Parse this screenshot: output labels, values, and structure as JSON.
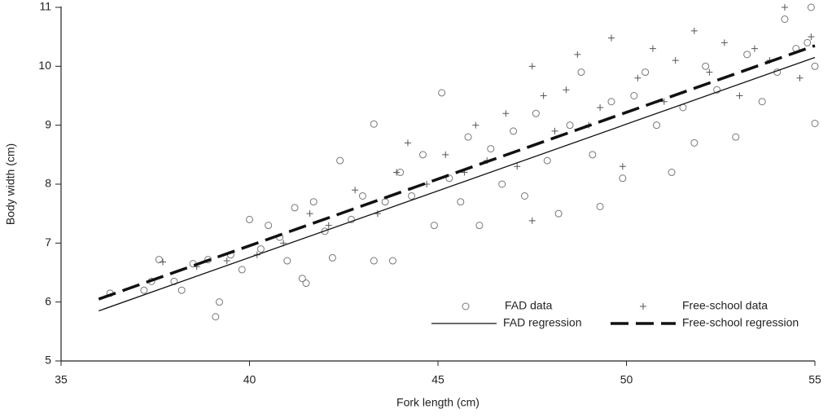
{
  "chart_data": {
    "type": "scatter",
    "x_label": "Fork length (cm)",
    "y_label": "Body width (cm)",
    "xlim": [
      35,
      55
    ],
    "xticks": [
      35,
      40,
      45,
      50,
      55
    ],
    "ylim": [
      5,
      11
    ],
    "yticks": [
      5,
      6,
      7,
      8,
      9,
      10,
      11
    ],
    "legend": "lower right",
    "series": [
      {
        "name": "FAD data",
        "marker": "circle",
        "color": "#777777",
        "x": [
          36.3,
          37.2,
          37.4,
          37.6,
          38.0,
          38.2,
          38.5,
          38.9,
          39.1,
          39.2,
          39.5,
          39.8,
          40.0,
          40.3,
          40.5,
          40.8,
          41.0,
          41.2,
          41.4,
          41.5,
          41.7,
          42.0,
          42.2,
          42.4,
          42.7,
          43.0,
          43.3,
          43.3,
          43.6,
          43.8,
          44.0,
          44.3,
          44.6,
          44.9,
          45.1,
          45.3,
          45.6,
          45.8,
          46.1,
          46.4,
          46.7,
          47.0,
          47.3,
          47.6,
          47.9,
          48.2,
          48.5,
          48.8,
          49.1,
          49.3,
          49.6,
          49.9,
          50.2,
          50.5,
          50.8,
          51.2,
          51.5,
          51.8,
          52.1,
          52.4,
          52.9,
          53.2,
          53.6,
          54.0,
          54.2,
          54.5,
          54.8,
          54.9,
          55.0,
          55.0
        ],
        "values": [
          6.15,
          6.2,
          6.35,
          6.72,
          6.35,
          6.2,
          6.65,
          6.72,
          5.75,
          6.0,
          6.8,
          6.55,
          7.4,
          6.9,
          7.3,
          7.1,
          6.7,
          7.6,
          6.4,
          6.32,
          7.7,
          7.2,
          6.75,
          8.4,
          7.4,
          7.8,
          9.02,
          6.7,
          7.7,
          6.7,
          8.2,
          7.8,
          8.5,
          7.3,
          9.55,
          8.1,
          7.7,
          8.8,
          7.3,
          8.6,
          8.0,
          8.9,
          7.8,
          9.2,
          8.4,
          7.5,
          9.0,
          9.9,
          8.5,
          7.62,
          9.4,
          8.1,
          9.5,
          9.9,
          9.0,
          8.2,
          9.3,
          8.7,
          10.0,
          9.6,
          8.8,
          10.2,
          9.4,
          9.9,
          10.8,
          10.3,
          10.4,
          11.0,
          9.03,
          10.0
        ]
      },
      {
        "name": "Free-school data",
        "marker": "plus",
        "color": "#555555",
        "x": [
          37.7,
          38.6,
          39.4,
          40.2,
          40.9,
          41.6,
          42.1,
          42.8,
          43.4,
          43.9,
          44.2,
          44.7,
          45.2,
          45.7,
          46.0,
          46.3,
          46.8,
          47.1,
          47.5,
          47.5,
          47.8,
          48.1,
          48.4,
          48.7,
          49.0,
          49.3,
          49.6,
          49.9,
          50.3,
          50.7,
          51.0,
          51.3,
          51.8,
          52.2,
          52.6,
          53.0,
          53.4,
          53.8,
          54.2,
          54.6,
          54.9
        ],
        "values": [
          6.68,
          6.6,
          6.7,
          6.8,
          7.0,
          7.5,
          7.3,
          7.9,
          7.5,
          8.2,
          8.7,
          8.0,
          8.5,
          8.2,
          9.0,
          8.4,
          9.2,
          8.3,
          10.0,
          7.38,
          9.5,
          8.9,
          9.6,
          10.2,
          9.0,
          9.3,
          10.48,
          8.3,
          9.8,
          10.3,
          9.4,
          10.1,
          10.6,
          9.9,
          10.4,
          9.5,
          10.3,
          10.1,
          11.0,
          9.8,
          10.5
        ]
      },
      {
        "name": "FAD regression",
        "line": "solid",
        "color": "#111111",
        "x": [
          36,
          55
        ],
        "values": [
          5.85,
          10.15
        ]
      },
      {
        "name": "Free-school regression",
        "line": "dashed",
        "color": "#111111",
        "x": [
          36,
          55
        ],
        "values": [
          6.05,
          10.35
        ]
      }
    ]
  }
}
